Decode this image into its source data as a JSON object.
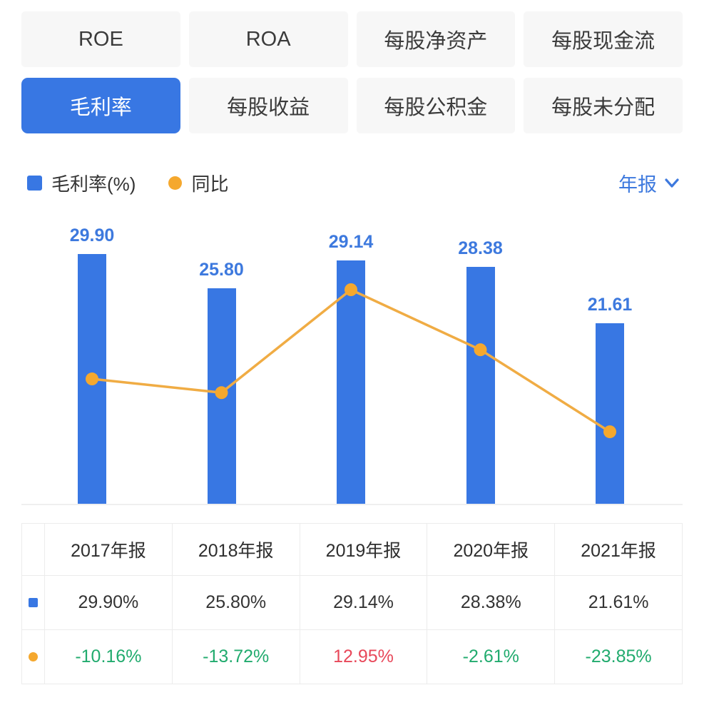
{
  "tabs": [
    {
      "id": "roe",
      "label": "ROE",
      "active": false
    },
    {
      "id": "roa",
      "label": "ROA",
      "active": false
    },
    {
      "id": "net-asset-ps",
      "label": "每股净资产",
      "active": false
    },
    {
      "id": "cash-flow-ps",
      "label": "每股现金流",
      "active": false
    },
    {
      "id": "gross-margin",
      "label": "毛利率",
      "active": true
    },
    {
      "id": "eps",
      "label": "每股收益",
      "active": false
    },
    {
      "id": "reserve-ps",
      "label": "每股公积金",
      "active": false
    },
    {
      "id": "undistributed-ps",
      "label": "每股未分配",
      "active": false
    }
  ],
  "legend": {
    "bar_label": "毛利率(%)",
    "line_label": "同比"
  },
  "period_selector": {
    "label": "年报"
  },
  "colors": {
    "accent": "#3877e3",
    "label_blue": "#3d79de",
    "tab_bg": "#f7f7f7",
    "line_orange": "#f0ac44",
    "marker_orange": "#f5a82e",
    "positive_red": "#e8485a",
    "negative_green": "#21ab6e",
    "text_dark": "#333333",
    "border": "#ececec"
  },
  "chart_data": {
    "type": "bar",
    "categories": [
      "2017年报",
      "2018年报",
      "2019年报",
      "2020年报",
      "2021年报"
    ],
    "series": [
      {
        "name": "毛利率(%)",
        "type": "bar",
        "values": [
          29.9,
          25.8,
          29.14,
          28.38,
          21.61
        ],
        "labels": [
          "29.90",
          "25.80",
          "29.14",
          "28.38",
          "21.61"
        ]
      },
      {
        "name": "同比",
        "type": "line",
        "values": [
          -10.16,
          -13.72,
          12.95,
          -2.61,
          -23.85
        ]
      }
    ],
    "title": "毛利率",
    "xlabel": "",
    "ylabel": "",
    "bar_axis_range": [
      0,
      30
    ],
    "grid": false,
    "value_labels_shown_for": "bar",
    "legend_position": "top-left"
  },
  "table": {
    "headers": [
      "2017年报",
      "2018年报",
      "2019年报",
      "2020年报",
      "2021年报"
    ],
    "rows": [
      {
        "icon": "bar-series-swatch",
        "name": "毛利率",
        "values": [
          "29.90%",
          "25.80%",
          "29.14%",
          "28.38%",
          "21.61%"
        ],
        "color_by_sign": false
      },
      {
        "icon": "line-series-dot",
        "name": "同比",
        "values": [
          "-10.16%",
          "-13.72%",
          "12.95%",
          "-2.61%",
          "-23.85%"
        ],
        "color_by_sign": true
      }
    ]
  }
}
